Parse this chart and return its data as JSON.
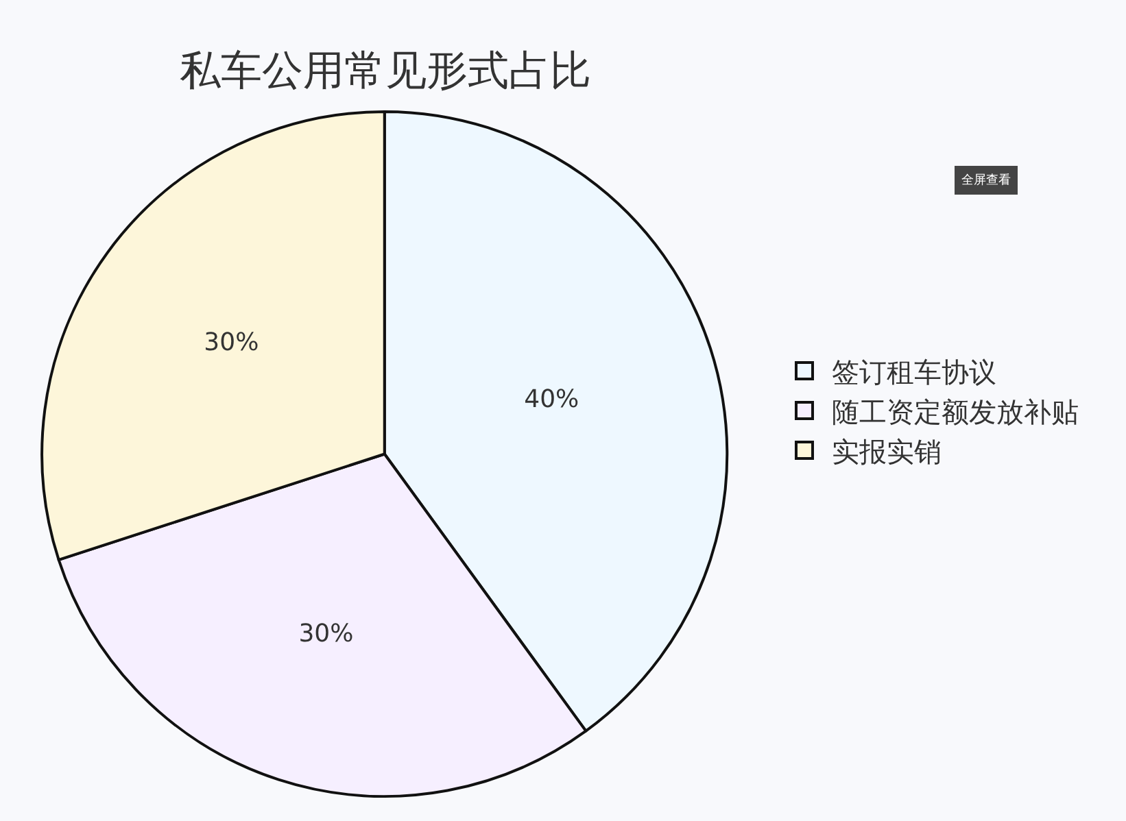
{
  "chart_data": {
    "type": "pie",
    "title": "私车公用常见形式占比",
    "categories": [
      "签订租车协议",
      "随工资定额发放补贴",
      "实报实销"
    ],
    "values": [
      40,
      30,
      30
    ],
    "colors": [
      "#eef8ff",
      "#f6efff",
      "#fdf6da"
    ],
    "value_labels": [
      "40%",
      "30%",
      "30%"
    ],
    "legend": "right",
    "annotations": [
      "全屏查看"
    ]
  }
}
